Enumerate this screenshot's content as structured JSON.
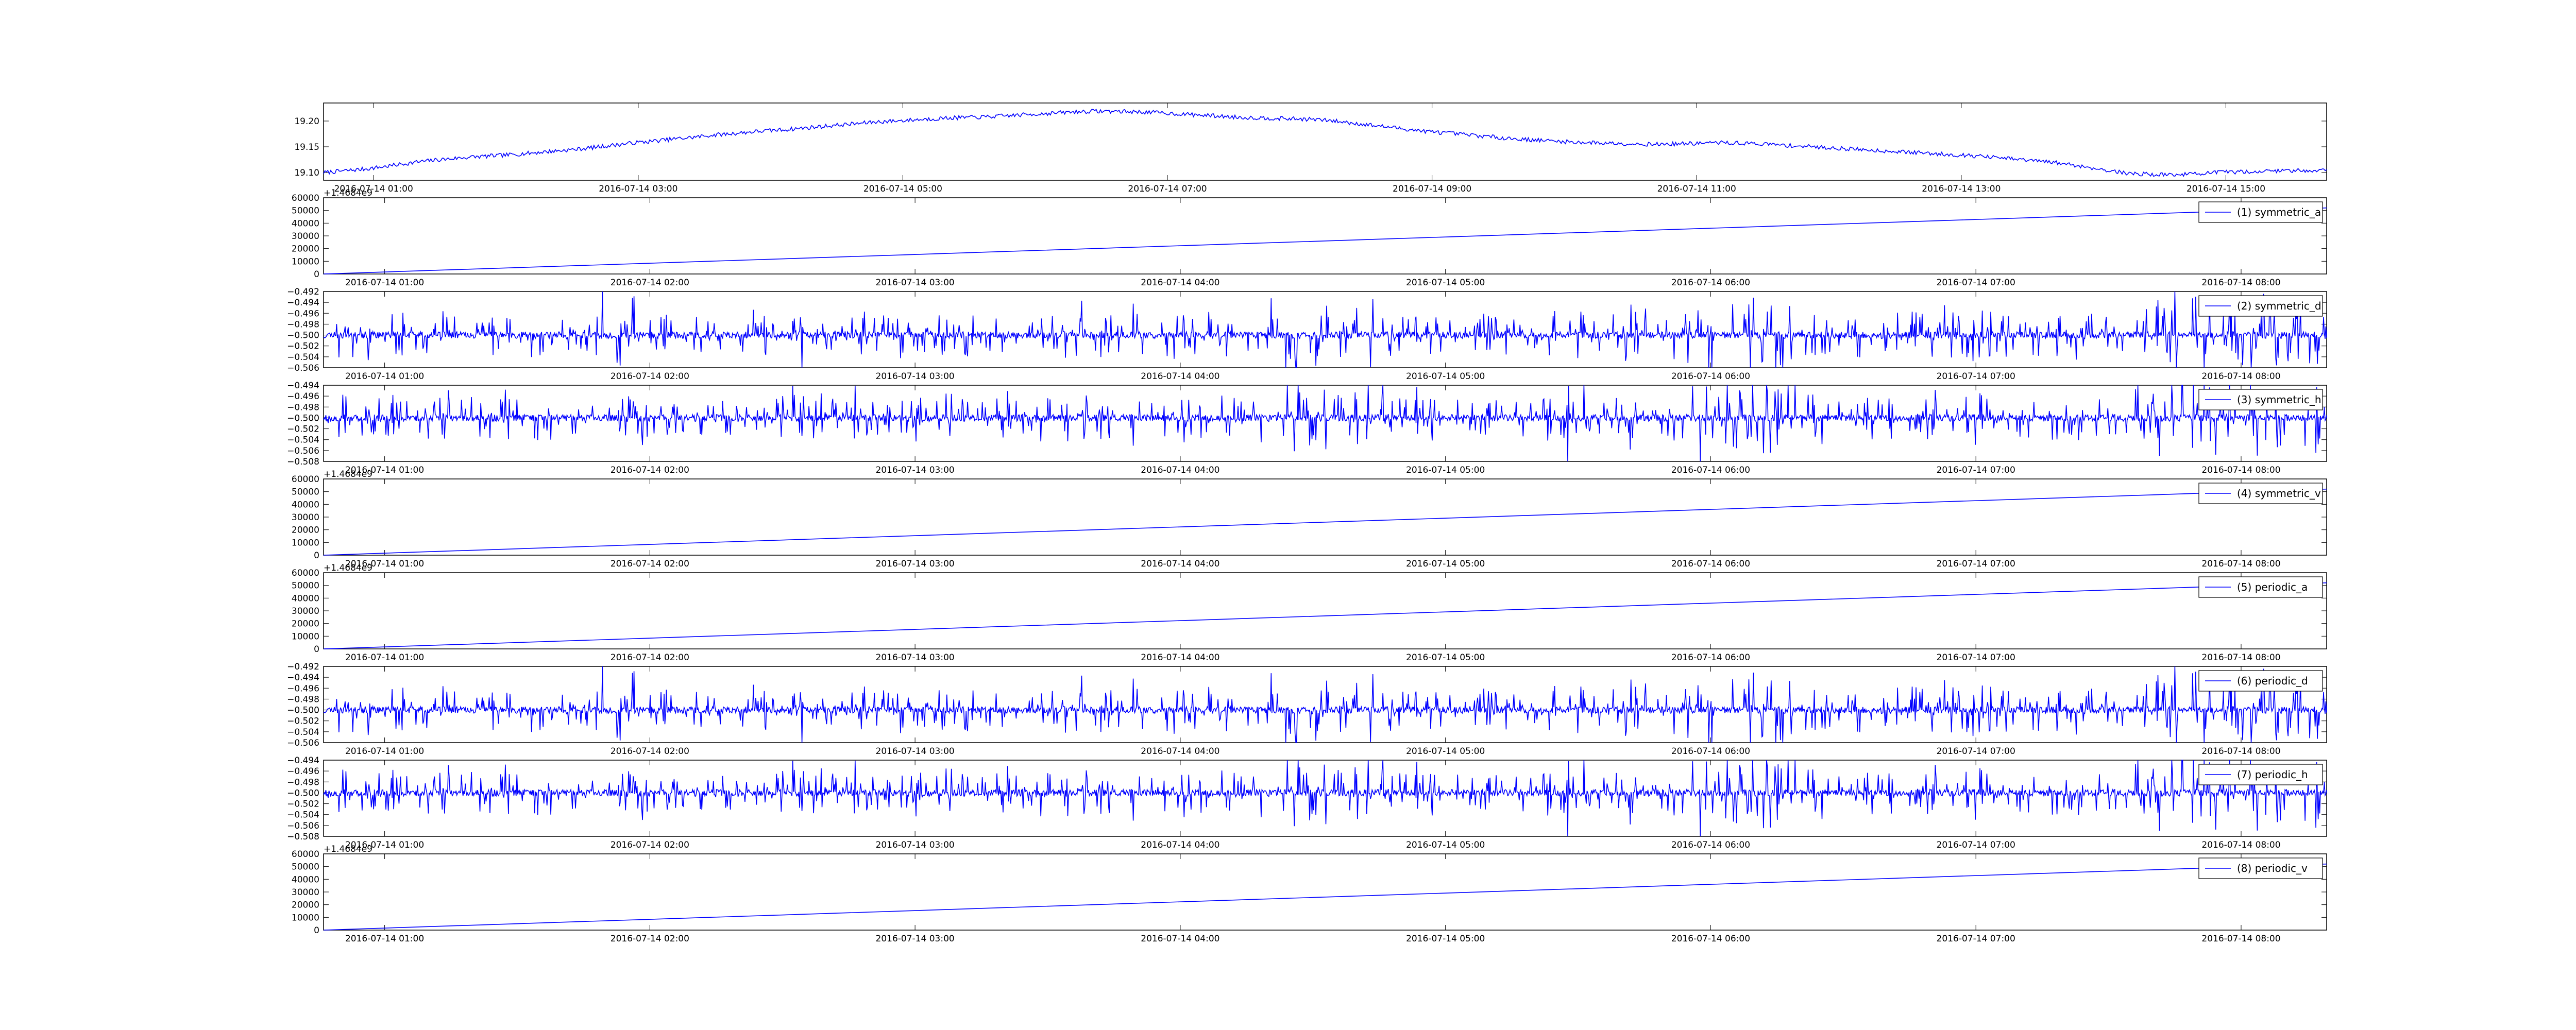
{
  "colors": {
    "line": "#0000ff",
    "axis": "#000000",
    "background": "#ffffff"
  },
  "chart_data": [
    {
      "id": "main",
      "type": "line",
      "series": [
        {
          "name": "",
          "values": [
            19.1,
            19.103,
            19.106,
            19.11,
            19.115,
            19.12,
            19.124,
            19.127,
            19.13,
            19.132,
            19.134,
            19.137,
            19.14,
            19.143,
            19.146,
            19.15,
            19.154,
            19.158,
            19.161,
            19.165,
            19.168,
            19.172,
            19.175,
            19.178,
            19.181,
            19.183,
            19.186,
            19.189,
            19.192,
            19.195,
            19.198,
            19.2,
            19.202,
            19.204,
            19.206,
            19.207,
            19.208,
            19.21,
            19.212,
            19.214,
            19.216,
            19.218,
            19.219,
            19.219,
            19.218,
            19.217,
            19.215,
            19.213,
            19.211,
            19.209,
            19.207,
            19.206,
            19.205,
            19.204,
            19.203,
            19.2,
            19.196,
            19.192,
            19.188,
            19.184,
            19.18,
            19.177,
            19.174,
            19.171,
            19.168,
            19.165,
            19.163,
            19.161,
            19.159,
            19.158,
            19.157,
            19.156,
            19.155,
            19.155,
            19.156,
            19.157,
            19.158,
            19.157,
            19.156,
            19.154,
            19.152,
            19.15,
            19.148,
            19.146,
            19.144,
            19.142,
            19.14,
            19.138,
            19.136,
            19.134,
            19.132,
            19.129,
            19.126,
            19.123,
            19.12,
            19.116,
            19.11,
            19.105,
            19.099,
            19.097,
            19.096,
            19.096,
            19.098,
            19.1,
            19.101,
            19.102,
            19.103,
            19.104,
            19.104,
            19.105
          ]
        }
      ],
      "x_start": "2016-07-14 00:56",
      "x_end": "2016-07-14 15:56",
      "xticks": [
        "2016-07-14 01:00",
        "2016-07-14 03:00",
        "2016-07-14 05:00",
        "2016-07-14 07:00",
        "2016-07-14 09:00",
        "2016-07-14 11:00",
        "2016-07-14 13:00",
        "2016-07-14 15:00"
      ],
      "yticks": [
        "19.10",
        "19.15",
        "19.20"
      ],
      "ylim": [
        19.085,
        19.235
      ],
      "noise": 0.004,
      "offset_label": "",
      "legend": ""
    },
    {
      "id": "sub1",
      "type": "line",
      "series": [
        {
          "name": "(1) symmetric_a",
          "values": [
            0,
            52000
          ]
        }
      ],
      "xticks": [
        "2016-07-14 01:00",
        "2016-07-14 02:00",
        "2016-07-14 03:00",
        "2016-07-14 04:00",
        "2016-07-14 05:00",
        "2016-07-14 06:00",
        "2016-07-14 07:00",
        "2016-07-14 08:00"
      ],
      "yticks": [
        "0",
        "10000",
        "20000",
        "30000",
        "40000",
        "50000",
        "60000"
      ],
      "ylim": [
        0,
        60000
      ],
      "offset_label": "+1.4684e9",
      "legend": "(1) symmetric_a",
      "kind": "linear"
    },
    {
      "id": "sub2",
      "type": "line",
      "series": [
        {
          "name": "(2) symmetric_d",
          "values": []
        }
      ],
      "xticks": [
        "2016-07-14 01:00",
        "2016-07-14 02:00",
        "2016-07-14 03:00",
        "2016-07-14 04:00",
        "2016-07-14 05:00",
        "2016-07-14 06:00",
        "2016-07-14 07:00",
        "2016-07-14 08:00"
      ],
      "yticks": [
        "−0.506",
        "−0.504",
        "−0.502",
        "−0.500",
        "−0.498",
        "−0.496",
        "−0.494",
        "−0.492"
      ],
      "ylim": [
        -0.506,
        -0.492
      ],
      "offset_label": "",
      "legend": "(2) symmetric_d",
      "kind": "noise",
      "center": -0.5,
      "seed": 11
    },
    {
      "id": "sub3",
      "type": "line",
      "series": [
        {
          "name": "(3) symmetric_h",
          "values": []
        }
      ],
      "xticks": [
        "2016-07-14 01:00",
        "2016-07-14 02:00",
        "2016-07-14 03:00",
        "2016-07-14 04:00",
        "2016-07-14 05:00",
        "2016-07-14 06:00",
        "2016-07-14 07:00",
        "2016-07-14 08:00"
      ],
      "yticks": [
        "−0.508",
        "−0.506",
        "−0.504",
        "−0.502",
        "−0.500",
        "−0.498",
        "−0.496",
        "−0.494"
      ],
      "ylim": [
        -0.508,
        -0.494
      ],
      "offset_label": "",
      "legend": "(3) symmetric_h",
      "kind": "noise",
      "center": -0.5,
      "seed": 23
    },
    {
      "id": "sub4",
      "type": "line",
      "series": [
        {
          "name": "(4) symmetric_v",
          "values": [
            0,
            52000
          ]
        }
      ],
      "xticks": [
        "2016-07-14 01:00",
        "2016-07-14 02:00",
        "2016-07-14 03:00",
        "2016-07-14 04:00",
        "2016-07-14 05:00",
        "2016-07-14 06:00",
        "2016-07-14 07:00",
        "2016-07-14 08:00"
      ],
      "yticks": [
        "0",
        "10000",
        "20000",
        "30000",
        "40000",
        "50000",
        "60000"
      ],
      "ylim": [
        0,
        60000
      ],
      "offset_label": "+1.4684e9",
      "legend": "(4) symmetric_v",
      "kind": "linear"
    },
    {
      "id": "sub5",
      "type": "line",
      "series": [
        {
          "name": "(5) periodic_a",
          "values": [
            0,
            52000
          ]
        }
      ],
      "xticks": [
        "2016-07-14 01:00",
        "2016-07-14 02:00",
        "2016-07-14 03:00",
        "2016-07-14 04:00",
        "2016-07-14 05:00",
        "2016-07-14 06:00",
        "2016-07-14 07:00",
        "2016-07-14 08:00"
      ],
      "yticks": [
        "0",
        "10000",
        "20000",
        "30000",
        "40000",
        "50000",
        "60000"
      ],
      "ylim": [
        0,
        60000
      ],
      "offset_label": "+1.4684e9",
      "legend": "(5) periodic_a",
      "kind": "linear"
    },
    {
      "id": "sub6",
      "type": "line",
      "series": [
        {
          "name": "(6) periodic_d",
          "values": []
        }
      ],
      "xticks": [
        "2016-07-14 01:00",
        "2016-07-14 02:00",
        "2016-07-14 03:00",
        "2016-07-14 04:00",
        "2016-07-14 05:00",
        "2016-07-14 06:00",
        "2016-07-14 07:00",
        "2016-07-14 08:00"
      ],
      "yticks": [
        "−0.506",
        "−0.504",
        "−0.502",
        "−0.500",
        "−0.498",
        "−0.496",
        "−0.494",
        "−0.492"
      ],
      "ylim": [
        -0.506,
        -0.492
      ],
      "offset_label": "",
      "legend": "(6) periodic_d",
      "kind": "noise",
      "center": -0.5,
      "seed": 11
    },
    {
      "id": "sub7",
      "type": "line",
      "series": [
        {
          "name": "(7) periodic_h",
          "values": []
        }
      ],
      "xticks": [
        "2016-07-14 01:00",
        "2016-07-14 02:00",
        "2016-07-14 03:00",
        "2016-07-14 04:00",
        "2016-07-14 05:00",
        "2016-07-14 06:00",
        "2016-07-14 07:00",
        "2016-07-14 08:00"
      ],
      "yticks": [
        "−0.508",
        "−0.506",
        "−0.504",
        "−0.502",
        "−0.500",
        "−0.498",
        "−0.496",
        "−0.494"
      ],
      "ylim": [
        -0.508,
        -0.494
      ],
      "offset_label": "",
      "legend": "(7) periodic_h",
      "kind": "noise",
      "center": -0.5,
      "seed": 23
    },
    {
      "id": "sub8",
      "type": "line",
      "series": [
        {
          "name": "(8) periodic_v",
          "values": [
            0,
            52000
          ]
        }
      ],
      "xticks": [
        "2016-07-14 01:00",
        "2016-07-14 02:00",
        "2016-07-14 03:00",
        "2016-07-14 04:00",
        "2016-07-14 05:00",
        "2016-07-14 06:00",
        "2016-07-14 07:00",
        "2016-07-14 08:00"
      ],
      "yticks": [
        "0",
        "10000",
        "20000",
        "30000",
        "40000",
        "50000",
        "60000"
      ],
      "ylim": [
        0,
        60000
      ],
      "offset_label": "+1.4684e9",
      "legend": "(8) periodic_v",
      "kind": "linear"
    }
  ]
}
